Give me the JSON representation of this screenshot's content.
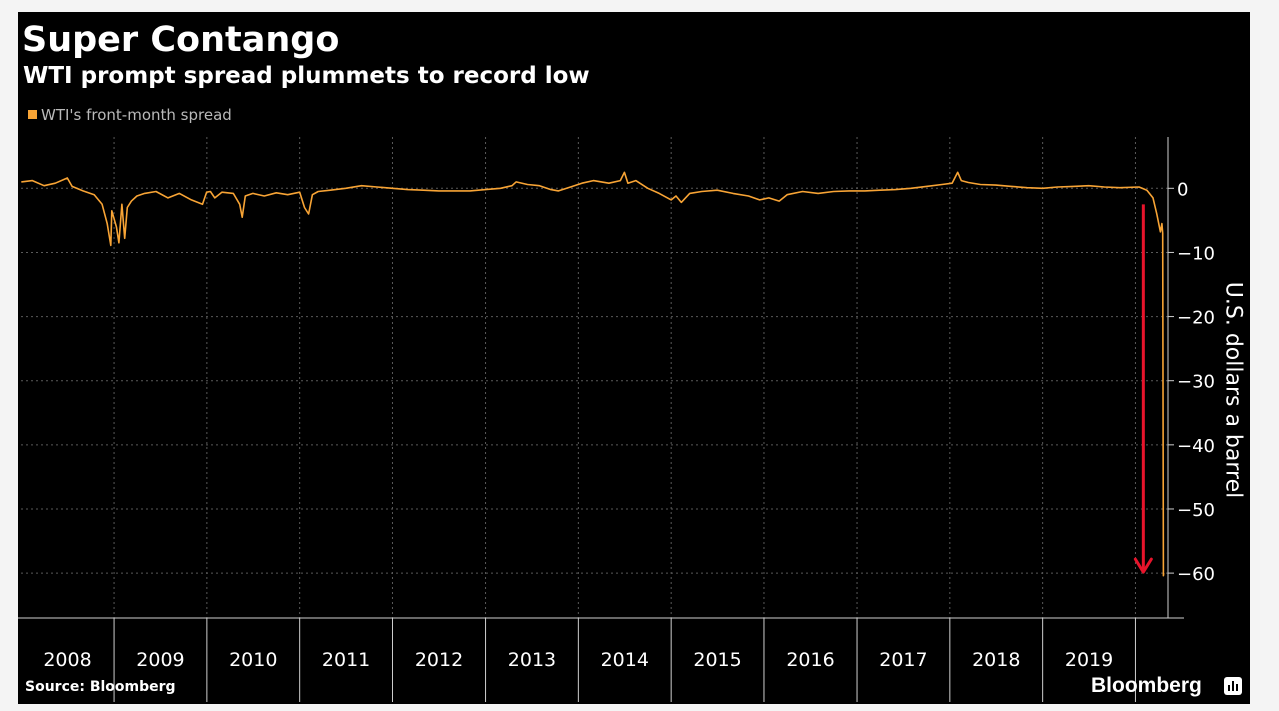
{
  "header": {
    "title": "Super Contango",
    "subtitle": "WTI prompt spread plummets to record low"
  },
  "footer": {
    "source": "Source: Bloomberg",
    "brand": "Bloomberg"
  },
  "colors": {
    "background": "#000000",
    "series": "#f8a435",
    "arrow": "#e8142b",
    "grid": "#5a5a5a",
    "text": "#ffffff"
  },
  "chart_data": {
    "type": "line",
    "title": "Super Contango",
    "subtitle": "WTI prompt spread plummets to record low",
    "xlabel": "",
    "ylabel": "U.S. dollars a barrel",
    "x_ticks": [
      "2008",
      "2009",
      "2010",
      "2011",
      "2012",
      "2013",
      "2014",
      "2015",
      "2016",
      "2017",
      "2018",
      "2019"
    ],
    "y_ticks": [
      0,
      -10,
      -20,
      -30,
      -40,
      -50,
      -60
    ],
    "ylim": [
      -67,
      8
    ],
    "xlim": [
      "2008-01-01",
      "2020-05-08"
    ],
    "grid": true,
    "legend_position": "top-left",
    "series": [
      {
        "name": "WTI's front-month spread",
        "color": "#f8a435",
        "points": [
          [
            "2008-01-02",
            1.0
          ],
          [
            "2008-02-15",
            1.2
          ],
          [
            "2008-04-01",
            0.4
          ],
          [
            "2008-05-15",
            0.8
          ],
          [
            "2008-07-01",
            1.6
          ],
          [
            "2008-07-20",
            0.3
          ],
          [
            "2008-09-01",
            -0.4
          ],
          [
            "2008-10-15",
            -1.0
          ],
          [
            "2008-11-15",
            -2.5
          ],
          [
            "2008-12-05",
            -5.5
          ],
          [
            "2008-12-19",
            -8.9
          ],
          [
            "2008-12-23",
            -3.5
          ],
          [
            "2009-01-10",
            -6.0
          ],
          [
            "2009-01-20",
            -8.5
          ],
          [
            "2009-02-01",
            -2.5
          ],
          [
            "2009-02-12",
            -7.8
          ],
          [
            "2009-02-22",
            -3.0
          ],
          [
            "2009-03-10",
            -2.0
          ],
          [
            "2009-04-01",
            -1.2
          ],
          [
            "2009-05-01",
            -0.8
          ],
          [
            "2009-06-15",
            -0.5
          ],
          [
            "2009-08-01",
            -1.5
          ],
          [
            "2009-09-15",
            -0.8
          ],
          [
            "2009-11-01",
            -1.8
          ],
          [
            "2009-12-15",
            -2.5
          ],
          [
            "2009-12-31",
            -0.6
          ],
          [
            "2010-01-15",
            -0.5
          ],
          [
            "2010-02-01",
            -1.5
          ],
          [
            "2010-03-01",
            -0.6
          ],
          [
            "2010-04-15",
            -0.8
          ],
          [
            "2010-05-10",
            -2.5
          ],
          [
            "2010-05-20",
            -4.5
          ],
          [
            "2010-06-01",
            -1.2
          ],
          [
            "2010-07-01",
            -0.8
          ],
          [
            "2010-08-15",
            -1.2
          ],
          [
            "2010-10-01",
            -0.7
          ],
          [
            "2010-11-15",
            -1.0
          ],
          [
            "2011-01-01",
            -0.6
          ],
          [
            "2011-01-20",
            -3.0
          ],
          [
            "2011-02-05",
            -4.0
          ],
          [
            "2011-02-20",
            -1.0
          ],
          [
            "2011-03-15",
            -0.5
          ],
          [
            "2011-05-01",
            -0.3
          ],
          [
            "2011-07-01",
            0.0
          ],
          [
            "2011-09-01",
            0.4
          ],
          [
            "2011-11-01",
            0.2
          ],
          [
            "2012-01-01",
            0.0
          ],
          [
            "2012-03-01",
            -0.2
          ],
          [
            "2012-05-01",
            -0.3
          ],
          [
            "2012-07-01",
            -0.4
          ],
          [
            "2012-09-01",
            -0.4
          ],
          [
            "2012-11-01",
            -0.4
          ],
          [
            "2013-01-01",
            -0.2
          ],
          [
            "2013-03-01",
            0.0
          ],
          [
            "2013-04-15",
            0.4
          ],
          [
            "2013-05-01",
            1.0
          ],
          [
            "2013-06-15",
            0.6
          ],
          [
            "2013-08-01",
            0.4
          ],
          [
            "2013-09-15",
            -0.2
          ],
          [
            "2013-10-15",
            -0.4
          ],
          [
            "2013-12-01",
            0.2
          ],
          [
            "2014-01-15",
            0.8
          ],
          [
            "2014-03-01",
            1.2
          ],
          [
            "2014-05-01",
            0.8
          ],
          [
            "2014-06-15",
            1.2
          ],
          [
            "2014-07-01",
            2.5
          ],
          [
            "2014-07-15",
            0.8
          ],
          [
            "2014-08-15",
            1.2
          ],
          [
            "2014-10-01",
            0.0
          ],
          [
            "2014-11-15",
            -0.8
          ],
          [
            "2015-01-01",
            -1.8
          ],
          [
            "2015-01-20",
            -1.2
          ],
          [
            "2015-02-10",
            -2.2
          ],
          [
            "2015-03-15",
            -0.8
          ],
          [
            "2015-05-01",
            -0.5
          ],
          [
            "2015-07-01",
            -0.3
          ],
          [
            "2015-09-01",
            -0.8
          ],
          [
            "2015-11-01",
            -1.2
          ],
          [
            "2015-12-15",
            -1.8
          ],
          [
            "2016-01-20",
            -1.5
          ],
          [
            "2016-03-01",
            -2.0
          ],
          [
            "2016-04-01",
            -1.0
          ],
          [
            "2016-06-01",
            -0.5
          ],
          [
            "2016-08-01",
            -0.8
          ],
          [
            "2016-10-01",
            -0.5
          ],
          [
            "2016-12-01",
            -0.4
          ],
          [
            "2017-02-01",
            -0.4
          ],
          [
            "2017-04-01",
            -0.3
          ],
          [
            "2017-06-01",
            -0.2
          ],
          [
            "2017-08-01",
            0.0
          ],
          [
            "2017-10-01",
            0.3
          ],
          [
            "2017-12-01",
            0.6
          ],
          [
            "2018-01-10",
            0.8
          ],
          [
            "2018-02-01",
            2.5
          ],
          [
            "2018-02-15",
            1.2
          ],
          [
            "2018-03-15",
            0.9
          ],
          [
            "2018-05-01",
            0.6
          ],
          [
            "2018-07-01",
            0.5
          ],
          [
            "2018-09-01",
            0.3
          ],
          [
            "2018-11-01",
            0.1
          ],
          [
            "2019-01-01",
            0.0
          ],
          [
            "2019-03-01",
            0.2
          ],
          [
            "2019-05-01",
            0.3
          ],
          [
            "2019-07-01",
            0.4
          ],
          [
            "2019-09-01",
            0.2
          ],
          [
            "2019-11-01",
            0.1
          ],
          [
            "2020-01-15",
            0.2
          ],
          [
            "2020-02-15",
            -0.3
          ],
          [
            "2020-03-10",
            -1.5
          ],
          [
            "2020-03-25",
            -4.0
          ],
          [
            "2020-04-08",
            -6.8
          ],
          [
            "2020-04-14",
            -5.5
          ],
          [
            "2020-04-17",
            -7.0
          ],
          [
            "2020-04-20",
            -60.4
          ],
          [
            "2020-04-21",
            -60.0
          ]
        ]
      }
    ],
    "annotations": [
      {
        "type": "arrow",
        "direction": "down",
        "color": "#e8142b",
        "x": "2020-02-01",
        "y_from": -2.5,
        "y_to": -60
      }
    ]
  }
}
